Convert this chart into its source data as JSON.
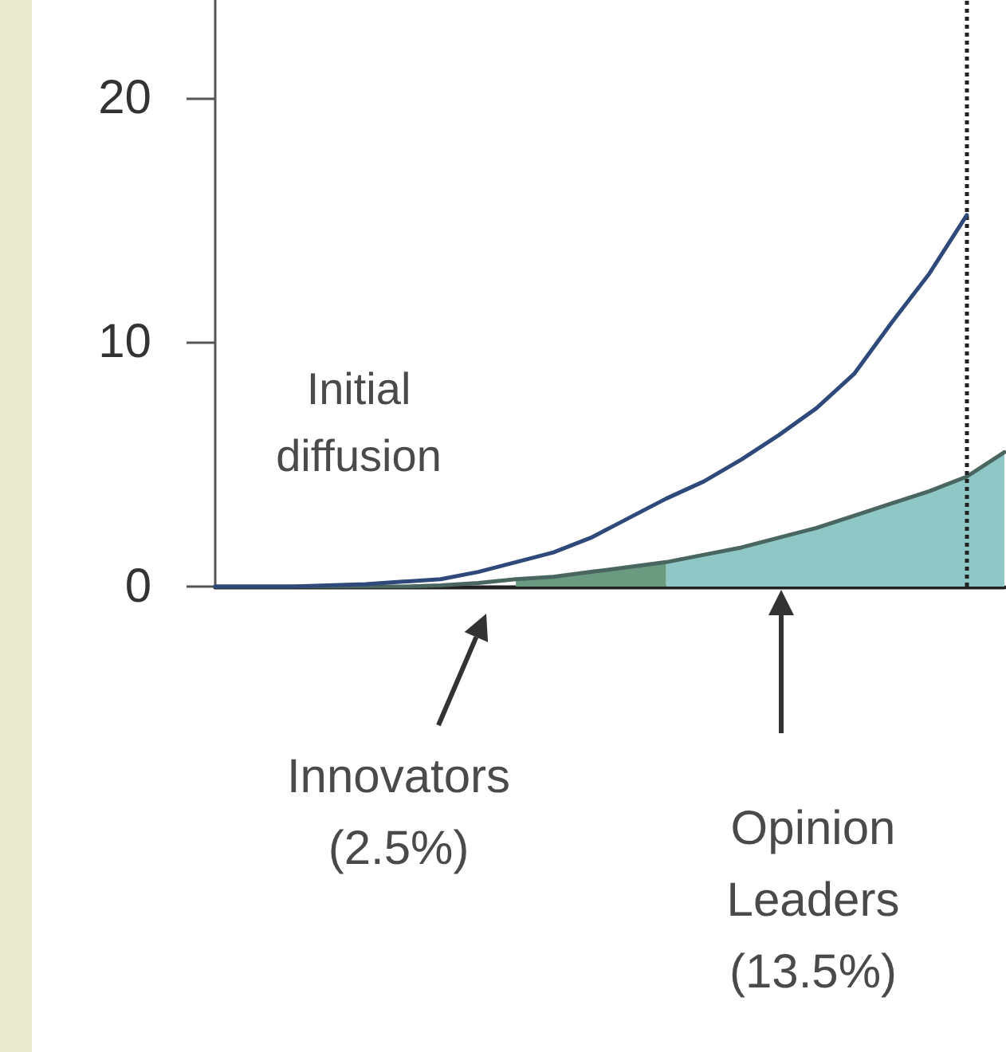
{
  "chart_data": {
    "type": "line",
    "categories": [
      null,
      null,
      null,
      null,
      null,
      null,
      null,
      null,
      null,
      null,
      null,
      null,
      null,
      null,
      null,
      null,
      null,
      null,
      null,
      null,
      null,
      null
    ],
    "series": [
      {
        "type": "area",
        "color": "#6a9a80",
        "values": [
          null,
          null,
          null,
          null,
          null,
          null,
          null,
          null,
          0.3,
          0.4,
          0.6,
          0.8,
          1.0,
          null,
          null,
          null,
          null,
          null,
          null,
          null,
          null,
          null
        ]
      },
      {
        "type": "area",
        "color": "#8fc7c7",
        "values": [
          null,
          null,
          null,
          null,
          null,
          null,
          null,
          null,
          null,
          null,
          null,
          null,
          1.0,
          1.3,
          1.6,
          2.0,
          2.4,
          2.9,
          3.4,
          3.9,
          4.5,
          5.5
        ]
      },
      {
        "color": "#4a6660",
        "values": [
          0,
          0,
          0,
          0,
          0,
          0,
          0.05,
          0.15,
          0.3,
          0.4,
          0.6,
          0.8,
          1.0,
          1.3,
          1.6,
          2.0,
          2.4,
          2.9,
          3.4,
          3.9,
          4.5,
          5.5
        ]
      },
      {
        "color": "#2f4a7a",
        "values": [
          0,
          0,
          0,
          0.05,
          0.1,
          0.2,
          0.3,
          0.6,
          1.0,
          1.4,
          2.0,
          2.8,
          3.6,
          4.3,
          5.2,
          6.2,
          7.3,
          8.7,
          10.8,
          12.8,
          15.2,
          null
        ]
      }
    ],
    "ylim": [
      0,
      24
    ],
    "yticks": [
      0,
      10,
      20
    ],
    "tick_labels": "y",
    "grid": false,
    "marker": "none",
    "line_style": "solid",
    "annotations": [
      "Initial\ndiffusion",
      "Innovators\n(2.5%)",
      "Opinion\nLeaders\n(13.5%)"
    ]
  }
}
